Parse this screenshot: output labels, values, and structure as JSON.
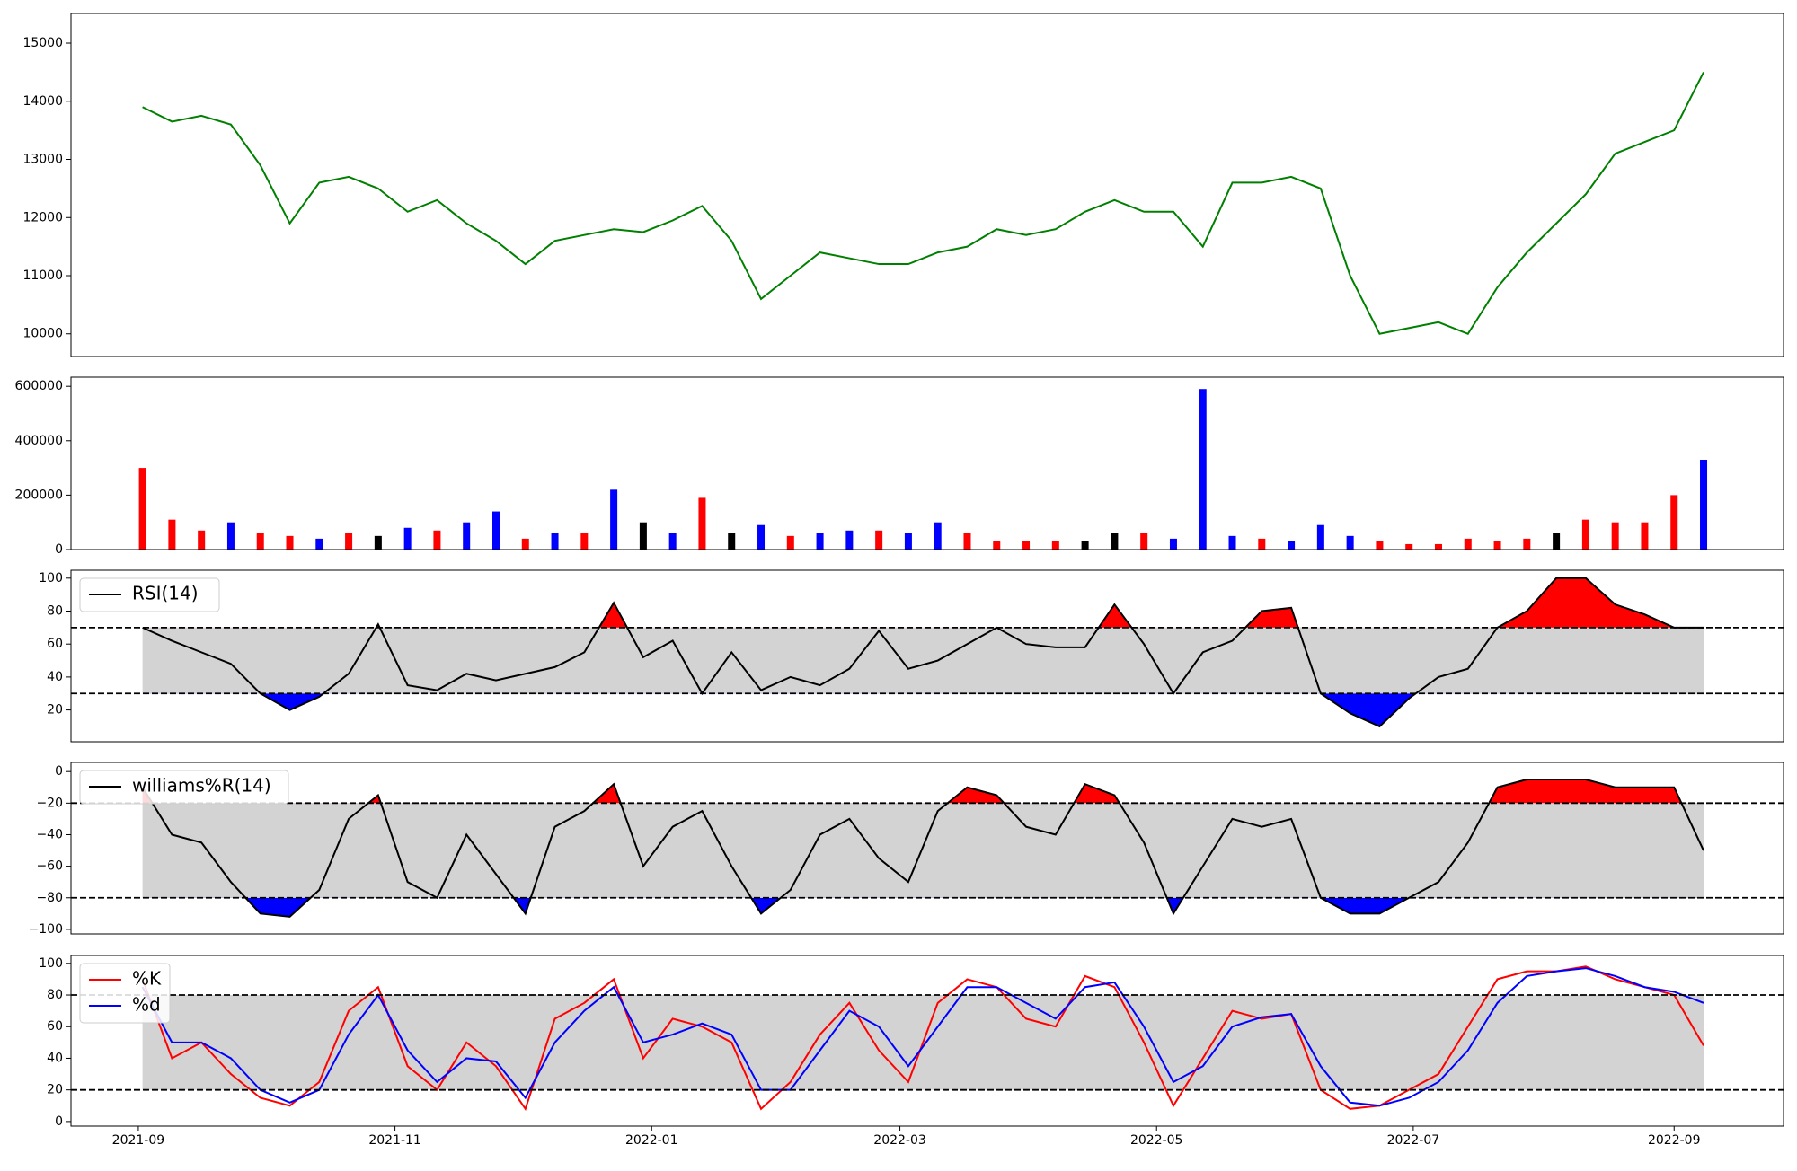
{
  "chart_data": [
    {
      "type": "line",
      "color": "green",
      "x": [
        "2021-09-02",
        "2021-09-09",
        "2021-09-16",
        "2021-09-23",
        "2021-09-30",
        "2021-10-07",
        "2021-10-14",
        "2021-10-21",
        "2021-10-28",
        "2021-11-04",
        "2021-11-11",
        "2021-11-18",
        "2021-11-25",
        "2021-12-02",
        "2021-12-09",
        "2021-12-16",
        "2021-12-23",
        "2021-12-30",
        "2022-01-06",
        "2022-01-13",
        "2022-01-20",
        "2022-01-27",
        "2022-02-03",
        "2022-02-10",
        "2022-02-17",
        "2022-02-24",
        "2022-03-03",
        "2022-03-10",
        "2022-03-17",
        "2022-03-24",
        "2022-03-31",
        "2022-04-07",
        "2022-04-14",
        "2022-04-21",
        "2022-04-28",
        "2022-05-05",
        "2022-05-12",
        "2022-05-19",
        "2022-05-26",
        "2022-06-02",
        "2022-06-09",
        "2022-06-16",
        "2022-06-23",
        "2022-06-30",
        "2022-07-07",
        "2022-07-14",
        "2022-07-21",
        "2022-07-28",
        "2022-08-04",
        "2022-08-11",
        "2022-08-18",
        "2022-08-25",
        "2022-09-01",
        "2022-09-08"
      ],
      "values": [
        13900,
        13650,
        13750,
        13600,
        12900,
        11900,
        12600,
        12700,
        12500,
        12100,
        12300,
        11900,
        11600,
        11200,
        11600,
        11700,
        11800,
        11750,
        11950,
        12200,
        11600,
        10600,
        11000,
        11400,
        11300,
        11200,
        11200,
        11400,
        11500,
        11800,
        11700,
        11800,
        12100,
        12300,
        12100,
        12100,
        11500,
        12600,
        12600,
        12700,
        12500,
        11000,
        10000,
        10100,
        10200,
        10000,
        10800,
        11400,
        11900,
        12400,
        13100,
        13300,
        13500,
        14500
      ],
      "xlim": [
        "2021-08-16",
        "2022-09-27"
      ],
      "ylim": [
        9610,
        15510
      ],
      "yticks": [
        10000,
        11000,
        12000,
        13000,
        14000,
        15000
      ]
    },
    {
      "type": "bar",
      "x": [
        "2021-09-02",
        "2021-09-09",
        "2021-09-16",
        "2021-09-23",
        "2021-09-30",
        "2021-10-07",
        "2021-10-14",
        "2021-10-21",
        "2021-10-28",
        "2021-11-04",
        "2021-11-11",
        "2021-11-18",
        "2021-11-25",
        "2021-12-02",
        "2021-12-09",
        "2021-12-16",
        "2021-12-23",
        "2021-12-30",
        "2022-01-06",
        "2022-01-13",
        "2022-01-20",
        "2022-01-27",
        "2022-02-03",
        "2022-02-10",
        "2022-02-17",
        "2022-02-24",
        "2022-03-03",
        "2022-03-10",
        "2022-03-17",
        "2022-03-24",
        "2022-03-31",
        "2022-04-07",
        "2022-04-14",
        "2022-04-21",
        "2022-04-28",
        "2022-05-05",
        "2022-05-12",
        "2022-05-19",
        "2022-05-26",
        "2022-06-02",
        "2022-06-09",
        "2022-06-16",
        "2022-06-23",
        "2022-06-30",
        "2022-07-07",
        "2022-07-14",
        "2022-07-21",
        "2022-07-28",
        "2022-08-04",
        "2022-08-11",
        "2022-08-18",
        "2022-08-25",
        "2022-09-01",
        "2022-09-08"
      ],
      "values": [
        300000,
        110000,
        70000,
        100000,
        60000,
        50000,
        40000,
        60000,
        50000,
        80000,
        70000,
        100000,
        140000,
        40000,
        60000,
        60000,
        220000,
        100000,
        60000,
        190000,
        60000,
        90000,
        50000,
        60000,
        70000,
        70000,
        60000,
        100000,
        60000,
        30000,
        30000,
        30000,
        30000,
        60000,
        60000,
        40000,
        590000,
        50000,
        40000,
        30000,
        90000,
        50000,
        30000,
        20000,
        20000,
        40000,
        30000,
        40000,
        60000,
        110000,
        100000,
        100000,
        200000,
        330000
      ],
      "colors": [
        "red",
        "red",
        "red",
        "blue",
        "red",
        "red",
        "blue",
        "red",
        "black",
        "blue",
        "red",
        "blue",
        "blue",
        "red",
        "blue",
        "red",
        "blue",
        "black",
        "blue",
        "red",
        "black",
        "blue",
        "red",
        "blue",
        "blue",
        "red",
        "blue",
        "blue",
        "red",
        "red",
        "red",
        "red",
        "black",
        "black",
        "red",
        "blue",
        "blue",
        "blue",
        "red",
        "blue",
        "blue",
        "blue",
        "red",
        "red",
        "red",
        "red",
        "red",
        "red",
        "black",
        "red",
        "red",
        "red",
        "red",
        "blue"
      ],
      "xlim": [
        "2021-08-16",
        "2022-09-27"
      ],
      "ylim": [
        0,
        633600
      ],
      "yticks": [
        0,
        200000,
        400000,
        600000
      ]
    },
    {
      "type": "line",
      "x": [
        "2021-09-02",
        "2021-09-09",
        "2021-09-16",
        "2021-09-23",
        "2021-09-30",
        "2021-10-07",
        "2021-10-14",
        "2021-10-21",
        "2021-10-28",
        "2021-11-04",
        "2021-11-11",
        "2021-11-18",
        "2021-11-25",
        "2021-12-02",
        "2021-12-09",
        "2021-12-16",
        "2021-12-23",
        "2021-12-30",
        "2022-01-06",
        "2022-01-13",
        "2022-01-20",
        "2022-01-27",
        "2022-02-03",
        "2022-02-10",
        "2022-02-17",
        "2022-02-24",
        "2022-03-03",
        "2022-03-10",
        "2022-03-17",
        "2022-03-24",
        "2022-03-31",
        "2022-04-07",
        "2022-04-14",
        "2022-04-21",
        "2022-04-28",
        "2022-05-05",
        "2022-05-12",
        "2022-05-19",
        "2022-05-26",
        "2022-06-02",
        "2022-06-09",
        "2022-06-16",
        "2022-06-23",
        "2022-06-30",
        "2022-07-07",
        "2022-07-14",
        "2022-07-21",
        "2022-07-28",
        "2022-08-04",
        "2022-08-11",
        "2022-08-18",
        "2022-08-25",
        "2022-09-01",
        "2022-09-08"
      ],
      "series": [
        {
          "name": "RSI(14)",
          "color": "black",
          "values": [
            70,
            62,
            55,
            48,
            30,
            20,
            28,
            42,
            72,
            35,
            32,
            42,
            38,
            42,
            46,
            55,
            85,
            52,
            62,
            30,
            55,
            32,
            40,
            35,
            45,
            68,
            45,
            50,
            60,
            70,
            60,
            58,
            58,
            84,
            60,
            30,
            55,
            62,
            80,
            82,
            30,
            18,
            10,
            27,
            40,
            45,
            70,
            80,
            100,
            100,
            84,
            78,
            70,
            70
          ]
        }
      ],
      "thresholds": [
        30,
        70
      ],
      "band_color": "#d3d3d3",
      "above_color": "red",
      "below_color": "blue",
      "xlim": [
        "2021-08-16",
        "2022-09-27"
      ],
      "ylim": [
        0.7,
        104.8
      ],
      "yticks": [
        20,
        40,
        60,
        80,
        100
      ],
      "legend": "upper left"
    },
    {
      "type": "line",
      "x": [
        "2021-09-02",
        "2021-09-09",
        "2021-09-16",
        "2021-09-23",
        "2021-09-30",
        "2021-10-07",
        "2021-10-14",
        "2021-10-21",
        "2021-10-28",
        "2021-11-04",
        "2021-11-11",
        "2021-11-18",
        "2021-11-25",
        "2021-12-02",
        "2021-12-09",
        "2021-12-16",
        "2021-12-23",
        "2021-12-30",
        "2022-01-06",
        "2022-01-13",
        "2022-01-20",
        "2022-01-27",
        "2022-02-03",
        "2022-02-10",
        "2022-02-17",
        "2022-02-24",
        "2022-03-03",
        "2022-03-10",
        "2022-03-17",
        "2022-03-24",
        "2022-03-31",
        "2022-04-07",
        "2022-04-14",
        "2022-04-21",
        "2022-04-28",
        "2022-05-05",
        "2022-05-12",
        "2022-05-19",
        "2022-05-26",
        "2022-06-02",
        "2022-06-09",
        "2022-06-16",
        "2022-06-23",
        "2022-06-30",
        "2022-07-07",
        "2022-07-14",
        "2022-07-21",
        "2022-07-28",
        "2022-08-04",
        "2022-08-11",
        "2022-08-18",
        "2022-08-25",
        "2022-09-01",
        "2022-09-08"
      ],
      "series": [
        {
          "name": "williams%R(14)",
          "color": "black",
          "values": [
            -10,
            -40,
            -45,
            -70,
            -90,
            -92,
            -75,
            -30,
            -15,
            -70,
            -80,
            -40,
            -65,
            -90,
            -35,
            -25,
            -8,
            -60,
            -35,
            -25,
            -60,
            -90,
            -75,
            -40,
            -30,
            -55,
            -70,
            -25,
            -10,
            -15,
            -35,
            -40,
            -8,
            -15,
            -45,
            -90,
            -60,
            -30,
            -35,
            -30,
            -80,
            -90,
            -90,
            -80,
            -70,
            -45,
            -10,
            -5,
            -5,
            -5,
            -10,
            -10,
            -10,
            -50
          ]
        }
      ],
      "thresholds": [
        -80,
        -20
      ],
      "band_color": "#d3d3d3",
      "above_color": "red",
      "below_color": "blue",
      "xlim": [
        "2021-08-16",
        "2022-09-27"
      ],
      "ylim": [
        -102.9,
        5.8
      ],
      "yticks": [
        {
          "value": -100,
          "label": "−100"
        },
        {
          "value": -80,
          "label": "−80"
        },
        {
          "value": -60,
          "label": "−60"
        },
        {
          "value": -40,
          "label": "−40"
        },
        {
          "value": -20,
          "label": "−20"
        },
        0
      ],
      "legend": "upper left"
    },
    {
      "type": "line",
      "x": [
        "2021-09-02",
        "2021-09-09",
        "2021-09-16",
        "2021-09-23",
        "2021-09-30",
        "2021-10-07",
        "2021-10-14",
        "2021-10-21",
        "2021-10-28",
        "2021-11-04",
        "2021-11-11",
        "2021-11-18",
        "2021-11-25",
        "2021-12-02",
        "2021-12-09",
        "2021-12-16",
        "2021-12-23",
        "2021-12-30",
        "2022-01-06",
        "2022-01-13",
        "2022-01-20",
        "2022-01-27",
        "2022-02-03",
        "2022-02-10",
        "2022-02-17",
        "2022-02-24",
        "2022-03-03",
        "2022-03-10",
        "2022-03-17",
        "2022-03-24",
        "2022-03-31",
        "2022-04-07",
        "2022-04-14",
        "2022-04-21",
        "2022-04-28",
        "2022-05-05",
        "2022-05-12",
        "2022-05-19",
        "2022-05-26",
        "2022-06-02",
        "2022-06-09",
        "2022-06-16",
        "2022-06-23",
        "2022-06-30",
        "2022-07-07",
        "2022-07-14",
        "2022-07-21",
        "2022-07-28",
        "2022-08-04",
        "2022-08-11",
        "2022-08-18",
        "2022-08-25",
        "2022-09-01",
        "2022-09-08"
      ],
      "series": [
        {
          "name": "%K",
          "color": "red",
          "values": [
            90,
            40,
            50,
            30,
            15,
            10,
            25,
            70,
            85,
            35,
            20,
            50,
            35,
            8,
            65,
            75,
            90,
            40,
            65,
            60,
            50,
            8,
            25,
            55,
            75,
            45,
            25,
            75,
            90,
            85,
            65,
            60,
            92,
            85,
            50,
            10,
            40,
            70,
            65,
            68,
            20,
            8,
            10,
            20,
            30,
            60,
            90,
            95,
            95,
            98,
            90,
            85,
            80,
            48
          ]
        },
        {
          "name": "%d",
          "color": "blue",
          "values": [
            85,
            50,
            50,
            40,
            20,
            12,
            20,
            55,
            80,
            45,
            25,
            40,
            38,
            15,
            50,
            70,
            85,
            50,
            55,
            62,
            55,
            20,
            20,
            45,
            70,
            60,
            35,
            60,
            85,
            85,
            75,
            65,
            85,
            88,
            60,
            25,
            35,
            60,
            66,
            68,
            35,
            12,
            10,
            15,
            25,
            45,
            75,
            92,
            95,
            97,
            92,
            85,
            82,
            75
          ]
        }
      ],
      "thresholds": [
        20,
        80
      ],
      "band_color": "#d3d3d3",
      "xlim": [
        "2021-08-16",
        "2022-09-27"
      ],
      "ylim": [
        -2.9,
        105
      ],
      "yticks": [
        0,
        20,
        40,
        60,
        80,
        100
      ],
      "xticks": [
        "2021-09",
        "2021-11",
        "2022-01",
        "2022-03",
        "2022-05",
        "2022-07",
        "2022-09"
      ],
      "legend": "upper left"
    }
  ]
}
